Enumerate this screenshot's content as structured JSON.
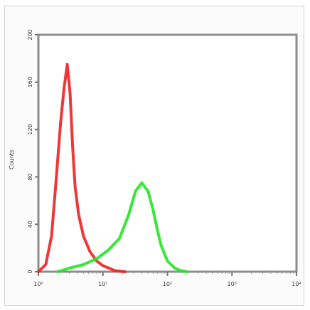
{
  "chart_data": {
    "type": "line",
    "title": "",
    "xlabel": "",
    "ylabel": "Counts",
    "x_scale": "log",
    "xlim": [
      1,
      10000
    ],
    "ylim": [
      0,
      200
    ],
    "x_ticks": [
      1,
      10,
      100,
      1000,
      10000
    ],
    "x_tick_labels": [
      "10⁰",
      "10¹",
      "10²",
      "10³",
      "10⁴"
    ],
    "y_ticks": [
      0,
      40,
      80,
      120,
      160,
      200
    ],
    "y_tick_labels": [
      "0",
      "40",
      "80",
      "120",
      "160",
      "200"
    ],
    "grid": false,
    "legend": "none",
    "series": [
      {
        "color": "#ee2020",
        "x": [
          1,
          1.3,
          1.6,
          1.9,
          2.2,
          2.5,
          2.8,
          3.1,
          3.4,
          3.7,
          4.2,
          5,
          6.3,
          8,
          10,
          12.5,
          15,
          18,
          22
        ],
        "y": [
          0,
          6,
          30,
          80,
          125,
          155,
          175,
          150,
          105,
          72,
          48,
          30,
          17,
          9,
          5,
          3,
          1,
          0.5,
          0
        ]
      },
      {
        "color": "#22e622",
        "x": [
          2,
          3,
          5,
          8,
          12,
          18,
          25,
          32,
          40,
          50,
          60,
          70,
          80,
          100,
          130,
          160,
          200
        ],
        "y": [
          0,
          3,
          6,
          11,
          18,
          28,
          48,
          68,
          75,
          68,
          52,
          35,
          22,
          9,
          3,
          1,
          0
        ]
      }
    ]
  }
}
